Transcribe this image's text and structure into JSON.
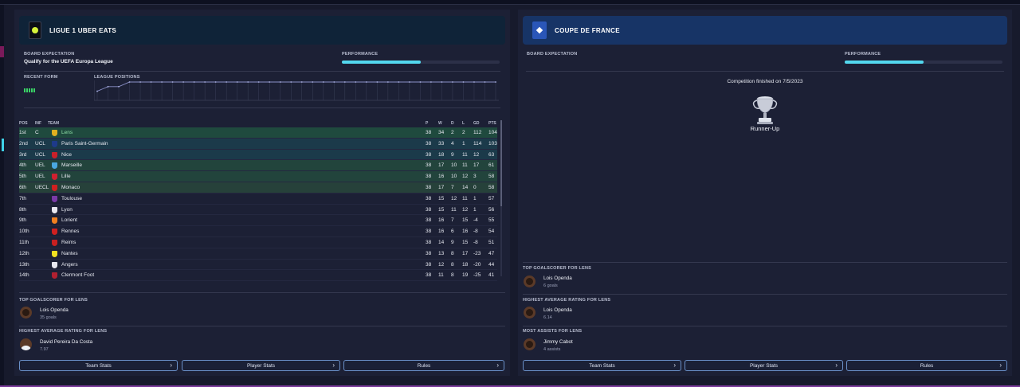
{
  "league": {
    "title": "LIGUE 1 UBER EATS",
    "board_label": "BOARD EXPECTATION",
    "board_value": "Qualify for the UEFA Europa League",
    "performance_label": "PERFORMANCE",
    "performance_fraction": 0.5,
    "recent_form_label": "RECENT FORM",
    "league_positions_label": "LEAGUE POSITIONS",
    "league_positions_series": [
      3,
      2,
      2,
      1,
      1,
      1,
      1,
      1,
      1,
      1,
      1,
      1,
      1,
      1,
      1,
      1,
      1,
      1,
      1,
      1,
      1,
      1,
      1,
      1,
      1,
      1,
      1,
      1,
      1,
      1,
      1,
      1,
      1,
      1,
      1,
      1,
      1,
      1
    ],
    "table": {
      "headers": {
        "pos": "POS",
        "inf": "INF",
        "team": "TEAM",
        "p": "P",
        "w": "W",
        "d": "D",
        "l": "L",
        "gd": "GD",
        "pts": "PTS"
      },
      "rows": [
        {
          "pos": "1st",
          "inf": "C",
          "team": "Lens",
          "p": "38",
          "w": "34",
          "d": "2",
          "l": "2",
          "gd": "112",
          "pts": "104",
          "crest": "#e0b020",
          "band": "champ",
          "highlight": true
        },
        {
          "pos": "2nd",
          "inf": "UCL",
          "team": "Paris Saint-Germain",
          "p": "38",
          "w": "33",
          "d": "4",
          "l": "1",
          "gd": "114",
          "pts": "103",
          "crest": "#1e3a8a",
          "band": "ucl"
        },
        {
          "pos": "3rd",
          "inf": "UCL",
          "team": "Nice",
          "p": "38",
          "w": "18",
          "d": "9",
          "l": "11",
          "gd": "12",
          "pts": "63",
          "crest": "#c8202a",
          "band": "ucl"
        },
        {
          "pos": "4th",
          "inf": "UEL",
          "team": "Marseille",
          "p": "38",
          "w": "17",
          "d": "10",
          "l": "11",
          "gd": "17",
          "pts": "61",
          "crest": "#4aa8e0",
          "band": "uel"
        },
        {
          "pos": "5th",
          "inf": "UEL",
          "team": "Lille",
          "p": "38",
          "w": "16",
          "d": "10",
          "l": "12",
          "gd": "3",
          "pts": "58",
          "crest": "#d02030",
          "band": "uel"
        },
        {
          "pos": "6th",
          "inf": "UECL",
          "team": "Monaco",
          "p": "38",
          "w": "17",
          "d": "7",
          "l": "14",
          "gd": "0",
          "pts": "58",
          "crest": "#d02020",
          "band": "uecl"
        },
        {
          "pos": "7th",
          "inf": "",
          "team": "Toulouse",
          "p": "38",
          "w": "15",
          "d": "12",
          "l": "11",
          "gd": "1",
          "pts": "57",
          "crest": "#7a3aa8",
          "band": "norm"
        },
        {
          "pos": "8th",
          "inf": "",
          "team": "Lyon",
          "p": "38",
          "w": "15",
          "d": "11",
          "l": "12",
          "gd": "1",
          "pts": "56",
          "crest": "#e8e8f0",
          "band": "norm"
        },
        {
          "pos": "9th",
          "inf": "",
          "team": "Lorient",
          "p": "38",
          "w": "16",
          "d": "7",
          "l": "15",
          "gd": "-4",
          "pts": "55",
          "crest": "#f08020",
          "band": "norm"
        },
        {
          "pos": "10th",
          "inf": "",
          "team": "Rennes",
          "p": "38",
          "w": "16",
          "d": "6",
          "l": "16",
          "gd": "-8",
          "pts": "54",
          "crest": "#d02020",
          "band": "norm"
        },
        {
          "pos": "11th",
          "inf": "",
          "team": "Reims",
          "p": "38",
          "w": "14",
          "d": "9",
          "l": "15",
          "gd": "-8",
          "pts": "51",
          "crest": "#c82020",
          "band": "norm"
        },
        {
          "pos": "12th",
          "inf": "",
          "team": "Nantes",
          "p": "38",
          "w": "13",
          "d": "8",
          "l": "17",
          "gd": "-23",
          "pts": "47",
          "crest": "#f0e020",
          "band": "norm"
        },
        {
          "pos": "13th",
          "inf": "",
          "team": "Angers",
          "p": "38",
          "w": "12",
          "d": "8",
          "l": "18",
          "gd": "-20",
          "pts": "44",
          "crest": "#e8e8f0",
          "band": "norm"
        },
        {
          "pos": "14th",
          "inf": "",
          "team": "Clermont Foot",
          "p": "38",
          "w": "11",
          "d": "8",
          "l": "19",
          "gd": "-25",
          "pts": "41",
          "crest": "#b02030",
          "band": "norm"
        }
      ]
    },
    "top_scorer_label": "TOP GOALSCORER FOR LENS",
    "top_scorer_name": "Lois Openda",
    "top_scorer_sub": "35 goals",
    "avg_rating_label": "HIGHEST AVERAGE RATING FOR LENS",
    "avg_rating_name": "David Pereira Da Costa",
    "avg_rating_sub": "7.97",
    "buttons": [
      "Team Stats",
      "Player Stats",
      "Rules"
    ]
  },
  "cup": {
    "title": "COUPE DE FRANCE",
    "board_label": "BOARD EXPECTATION",
    "performance_label": "PERFORMANCE",
    "performance_fraction": 0.5,
    "finished_text": "Competition finished on 7/5/2023",
    "result": "Runner-Up",
    "top_scorer_label": "TOP GOALSCORER FOR LENS",
    "top_scorer_name": "Lois Openda",
    "top_scorer_sub": "6 goals",
    "avg_rating_label": "HIGHEST AVERAGE RATING FOR LENS",
    "avg_rating_name": "Lois Openda",
    "avg_rating_sub": "6.14",
    "assists_label": "MOST ASSISTS FOR LENS",
    "assists_name": "Jimmy Cabot",
    "assists_sub": "4 assists",
    "buttons": [
      "Team Stats",
      "Player Stats",
      "Rules"
    ]
  },
  "colors": {
    "accent": "#53d8ee",
    "form_win": "#3ad466",
    "panel": "#1c2035",
    "cup_header": "#173466"
  }
}
